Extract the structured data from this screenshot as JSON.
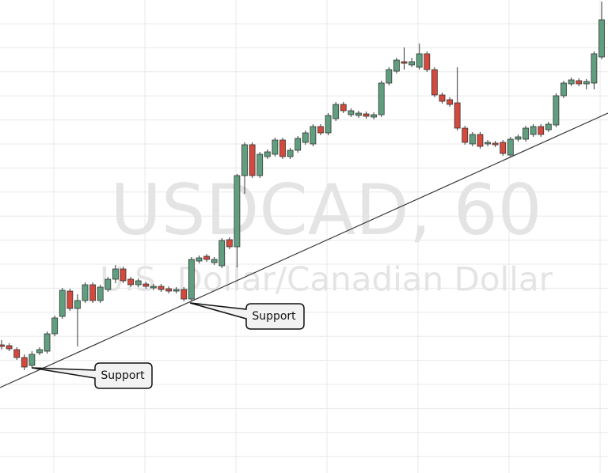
{
  "chart_data": {
    "type": "candlestick",
    "title": "USDCAD, 60",
    "subtitle": "U.S. Dollar/Canadian Dollar",
    "annotations": [
      "Support",
      "Support"
    ],
    "up_color": "#5f9f7f",
    "down_color": "#d4493c",
    "grid": true,
    "ylim": [
      0,
      598
    ],
    "open": [
      162,
      161,
      156,
      146,
      136,
      152,
      154,
      176,
      198,
      230,
      208,
      218,
      238,
      218,
      232,
      245,
      258,
      245,
      238,
      239,
      234,
      236,
      233,
      230,
      232,
      220,
      268,
      274,
      266,
      262,
      295,
      286,
      376,
      415,
      376,
      400,
      403,
      421,
      400,
      408,
      418,
      416,
      438,
      430,
      448,
      466,
      453,
      452,
      454,
      450,
      453,
      493,
      508,
      520,
      516,
      513,
      530,
      510,
      478,
      472,
      468,
      436,
      416,
      428,
      416,
      417,
      418,
      402,
      422,
      422,
      428,
      438,
      434,
      440,
      477,
      492,
      496,
      492,
      493,
      526
    ],
    "high": [
      168,
      164,
      159,
      150,
      154,
      159,
      179,
      199,
      234,
      233,
      226,
      241,
      241,
      238,
      248,
      263,
      261,
      248,
      246,
      242,
      239,
      239,
      236,
      235,
      235,
      273,
      275,
      277,
      273,
      297,
      298,
      378,
      418,
      418,
      406,
      409,
      424,
      424,
      411,
      426,
      433,
      441,
      441,
      455,
      469,
      469,
      461,
      458,
      457,
      456,
      496,
      513,
      525,
      538,
      525,
      543,
      533,
      513,
      481,
      475,
      513,
      439,
      431,
      431,
      421,
      420,
      421,
      425,
      428,
      439,
      441,
      441,
      444,
      480,
      496,
      500,
      499,
      498,
      533,
      596
    ],
    "low": [
      156,
      154,
      143,
      130,
      133,
      149,
      151,
      173,
      195,
      205,
      160,
      215,
      215,
      215,
      229,
      240,
      240,
      235,
      235,
      233,
      231,
      229,
      227,
      227,
      217,
      217,
      265,
      267,
      263,
      259,
      283,
      260,
      353,
      373,
      373,
      397,
      400,
      397,
      397,
      405,
      415,
      413,
      427,
      427,
      445,
      455,
      450,
      449,
      448,
      447,
      450,
      490,
      505,
      510,
      513,
      510,
      507,
      475,
      467,
      463,
      433,
      415,
      413,
      410,
      413,
      412,
      401,
      399,
      419,
      419,
      425,
      425,
      431,
      437,
      474,
      489,
      489,
      485,
      485,
      523
    ],
    "close": [
      160,
      157,
      146,
      134,
      150,
      156,
      176,
      196,
      231,
      208,
      218,
      238,
      218,
      235,
      245,
      258,
      243,
      238,
      243,
      236,
      236,
      232,
      230,
      232,
      220,
      270,
      272,
      270,
      270,
      294,
      286,
      376,
      415,
      376,
      403,
      406,
      421,
      400,
      408,
      423,
      430,
      438,
      430,
      452,
      466,
      458,
      458,
      455,
      451,
      453,
      493,
      510,
      522,
      518,
      520,
      530,
      510,
      478,
      470,
      466,
      436,
      418,
      428,
      413,
      418,
      415,
      404,
      422,
      425,
      436,
      438,
      428,
      441,
      477,
      493,
      497,
      492,
      495,
      530,
      573
    ]
  }
}
